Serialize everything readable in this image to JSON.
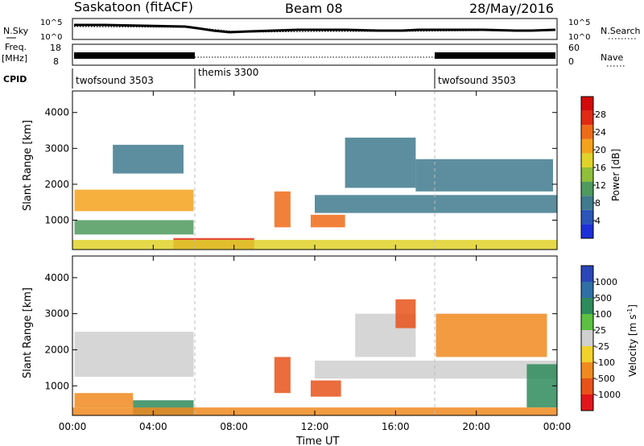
{
  "header": {
    "station": "Saskatoon (fitACF)",
    "beam": "Beam 08",
    "date": "28/May/2016"
  },
  "labels": {
    "nsky": "N.Sky",
    "nsearch": "N.Search",
    "freq_line1": "Freq.",
    "freq_line2": "[MHz]",
    "nave": "Nave",
    "cpid": "CPID",
    "power_bar": "Power [dB]",
    "velocity_bar": "Velocity [m s",
    "velocity_bar_exp": "-1",
    "velocity_bar_close": "]"
  },
  "scale_ticks": {
    "nsky": [
      "10^5",
      "10^0"
    ],
    "nsearch": [
      "10^5",
      "10^0"
    ],
    "freq": [
      "18",
      "8"
    ],
    "nave": [
      "60",
      "0"
    ]
  },
  "cpid_segments": [
    {
      "label": "twofsound 3503",
      "start_hour": 0,
      "end_hour": 6
    },
    {
      "label": "themis 3300",
      "start_hour": 6,
      "end_hour": 18
    },
    {
      "label": "twofsound 3503",
      "start_hour": 18,
      "end_hour": 24
    }
  ],
  "power_colorbar": {
    "ticks": [
      "4",
      "8",
      "12",
      "16",
      "20",
      "24",
      "28"
    ],
    "colors": [
      "#1c2fd8",
      "#2b55b8",
      "#3f7a8e",
      "#4f9a5e",
      "#8fbf3a",
      "#e0d22a",
      "#f3a21c",
      "#ee6b18",
      "#e12a14",
      "#d4090b"
    ]
  },
  "velocity_colorbar": {
    "ticks": [
      "1000",
      "500",
      "100",
      "25",
      "-25",
      "-100",
      "-500",
      "-1000"
    ],
    "colors": [
      "#2a46b8",
      "#2f6fa6",
      "#2e8b5c",
      "#5cc040",
      "#cfcfcf",
      "#f1d22c",
      "#f08a1f",
      "#e8521a",
      "#e2161a"
    ]
  },
  "chart_data": {
    "type": "heatmap",
    "xlabel": "Time UT",
    "x_ticks": [
      "00:00",
      "04:00",
      "08:00",
      "12:00",
      "16:00",
      "20:00",
      "00:00"
    ],
    "xlim_hours": [
      0,
      24
    ],
    "panels": [
      {
        "name": "power",
        "ylabel": "Slant Range [km]",
        "y_ticks": [
          "1000",
          "2000",
          "3000",
          "4000"
        ],
        "ylim_km": [
          180,
          4600
        ],
        "colorbar": "Power [dB]",
        "regions": [
          {
            "t0": 0.1,
            "t1": 6.0,
            "r0": 1250,
            "r1": 1850,
            "v": 22
          },
          {
            "t0": 0.1,
            "t1": 6.0,
            "r0": 600,
            "r1": 1000,
            "v": 12
          },
          {
            "t0": 2.0,
            "t1": 5.5,
            "r0": 2300,
            "r1": 3100,
            "v": 8
          },
          {
            "t0": 5.0,
            "t1": 9.0,
            "r0": 200,
            "r1": 500,
            "v": 28
          },
          {
            "t0": 10.0,
            "t1": 10.8,
            "r0": 800,
            "r1": 1800,
            "v": 24
          },
          {
            "t0": 11.8,
            "t1": 13.5,
            "r0": 800,
            "r1": 1150,
            "v": 24
          },
          {
            "t0": 12.0,
            "t1": 24.0,
            "r0": 1200,
            "r1": 1700,
            "v": 8
          },
          {
            "t0": 13.5,
            "t1": 17.0,
            "r0": 1900,
            "r1": 3300,
            "v": 8
          },
          {
            "t0": 17.0,
            "t1": 23.8,
            "r0": 1800,
            "r1": 2700,
            "v": 8
          },
          {
            "t0": 0.0,
            "t1": 24.0,
            "r0": 180,
            "r1": 450,
            "v": 18
          }
        ]
      },
      {
        "name": "velocity",
        "ylabel": "Slant Range [km]",
        "y_ticks": [
          "1000",
          "2000",
          "3000",
          "4000"
        ],
        "ylim_km": [
          180,
          4600
        ],
        "colorbar": "Velocity [m s-1]",
        "regions": [
          {
            "t0": 0.1,
            "t1": 6.0,
            "r0": 1250,
            "r1": 2500,
            "v": 0
          },
          {
            "t0": 0.1,
            "t1": 3.0,
            "r0": 400,
            "r1": 800,
            "v": -100
          },
          {
            "t0": 3.0,
            "t1": 6.0,
            "r0": 200,
            "r1": 600,
            "v": 100
          },
          {
            "t0": 10.0,
            "t1": 10.8,
            "r0": 800,
            "r1": 1800,
            "v": -500
          },
          {
            "t0": 11.8,
            "t1": 13.3,
            "r0": 700,
            "r1": 1150,
            "v": -500
          },
          {
            "t0": 14.0,
            "t1": 17.0,
            "r0": 1800,
            "r1": 3000,
            "v": 0
          },
          {
            "t0": 16.0,
            "t1": 17.0,
            "r0": 2600,
            "r1": 3400,
            "v": -500
          },
          {
            "t0": 12.0,
            "t1": 24.0,
            "r0": 1200,
            "r1": 1700,
            "v": 0
          },
          {
            "t0": 18.0,
            "t1": 23.5,
            "r0": 1800,
            "r1": 3000,
            "v": -100
          },
          {
            "t0": 22.5,
            "t1": 24.0,
            "r0": 400,
            "r1": 1600,
            "v": 100
          },
          {
            "t0": 0.0,
            "t1": 24.0,
            "r0": 180,
            "r1": 400,
            "v": -100
          }
        ]
      }
    ]
  }
}
